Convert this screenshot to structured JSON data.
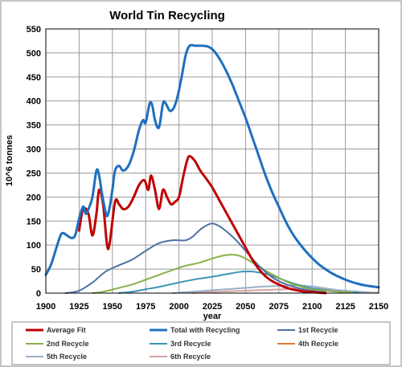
{
  "chart_data": {
    "type": "line",
    "title": "World Tin Recycling",
    "xlabel": "year",
    "ylabel": "10^6 tonnes",
    "xlim": [
      1900,
      2150
    ],
    "ylim": [
      0,
      550
    ],
    "xticks": [
      1900,
      1925,
      1950,
      1975,
      2000,
      2025,
      2050,
      2075,
      2100,
      2125,
      2150
    ],
    "yticks": [
      0,
      50,
      100,
      150,
      200,
      250,
      300,
      350,
      400,
      450,
      500,
      550
    ],
    "grid": true,
    "legend_position": "bottom",
    "series": [
      {
        "name": "Average Fit",
        "color": "#c00000",
        "x": [
          1925,
          1928,
          1932,
          1935,
          1938,
          1940,
          1943,
          1946,
          1948,
          1952,
          1955,
          1958,
          1962,
          1966,
          1970,
          1974,
          1977,
          1979,
          1982,
          1985,
          1988,
          1991,
          1994,
          1997,
          2000,
          2003,
          2006,
          2008,
          2012,
          2016,
          2020,
          2025,
          2030,
          2035,
          2040,
          2045,
          2050,
          2055,
          2060,
          2065,
          2070,
          2075,
          2080,
          2085,
          2090,
          2095,
          2100,
          2105,
          2110
        ],
        "y": [
          130,
          175,
          165,
          120,
          165,
          215,
          185,
          100,
          105,
          190,
          185,
          175,
          180,
          200,
          225,
          235,
          215,
          245,
          215,
          175,
          215,
          200,
          185,
          190,
          200,
          240,
          275,
          285,
          275,
          255,
          240,
          220,
          195,
          170,
          145,
          120,
          95,
          70,
          50,
          35,
          25,
          18,
          12,
          8,
          5,
          3,
          2,
          1,
          0
        ]
      },
      {
        "name": "Total with Recycling",
        "color": "#1f6fbf",
        "x": [
          1900,
          1904,
          1908,
          1911,
          1913,
          1916,
          1919,
          1922,
          1925,
          1928,
          1930,
          1932,
          1935,
          1938,
          1940,
          1942,
          1944,
          1946,
          1948,
          1950,
          1952,
          1955,
          1958,
          1962,
          1966,
          1970,
          1973,
          1975,
          1978,
          1980,
          1982,
          1985,
          1988,
          1990,
          1993,
          1996,
          1999,
          2002,
          2005,
          2008,
          2012,
          2017,
          2022,
          2026,
          2030,
          2035,
          2040,
          2045,
          2050,
          2055,
          2060,
          2065,
          2070,
          2075,
          2080,
          2085,
          2090,
          2095,
          2100,
          2105,
          2110,
          2115,
          2120,
          2125,
          2130,
          2135,
          2140,
          2145,
          2150
        ],
        "y": [
          38,
          60,
          95,
          120,
          125,
          120,
          115,
          120,
          155,
          180,
          165,
          175,
          200,
          255,
          245,
          210,
          180,
          160,
          180,
          215,
          255,
          265,
          255,
          265,
          295,
          340,
          360,
          355,
          395,
          390,
          360,
          345,
          395,
          395,
          380,
          385,
          410,
          450,
          495,
          515,
          515,
          515,
          513,
          505,
          490,
          465,
          435,
          400,
          365,
          325,
          285,
          245,
          210,
          180,
          150,
          125,
          105,
          88,
          73,
          60,
          50,
          41,
          34,
          28,
          23,
          19,
          16,
          14,
          12
        ]
      },
      {
        "name": "1st Recycle",
        "color": "#4f6fa6",
        "x": [
          1915,
          1925,
          1935,
          1945,
          1955,
          1965,
          1975,
          1985,
          1995,
          2000,
          2005,
          2010,
          2015,
          2020,
          2025,
          2030,
          2035,
          2040,
          2045,
          2050,
          2055,
          2060,
          2065,
          2070,
          2075,
          2080,
          2085,
          2090,
          2095,
          2100,
          2105,
          2110
        ],
        "y": [
          0,
          5,
          22,
          45,
          58,
          70,
          88,
          104,
          110,
          110,
          110,
          117,
          130,
          140,
          145,
          140,
          130,
          118,
          104,
          88,
          72,
          57,
          44,
          33,
          25,
          19,
          14,
          10,
          7,
          5,
          3,
          2
        ]
      },
      {
        "name": "2nd Recycle",
        "color": "#8ab04a",
        "x": [
          1935,
          1945,
          1955,
          1965,
          1975,
          1985,
          1995,
          2005,
          2015,
          2025,
          2030,
          2035,
          2040,
          2045,
          2050,
          2055,
          2060,
          2065,
          2070,
          2075,
          2080,
          2085,
          2090,
          2095,
          2100,
          2105,
          2110,
          2115,
          2120,
          2125,
          2130
        ],
        "y": [
          0,
          4,
          11,
          18,
          28,
          38,
          48,
          57,
          63,
          72,
          76,
          79,
          80,
          78,
          72,
          64,
          56,
          47,
          39,
          32,
          25,
          19,
          15,
          11,
          8,
          6,
          5,
          4,
          3,
          2,
          1
        ]
      },
      {
        "name": "3rd Recycle",
        "color": "#3a95b5",
        "x": [
          1955,
          1965,
          1975,
          1985,
          1995,
          2005,
          2015,
          2025,
          2035,
          2045,
          2050,
          2055,
          2060,
          2065,
          2070,
          2075,
          2080,
          2085,
          2090,
          2095,
          2100,
          2105,
          2110,
          2115,
          2120,
          2125,
          2130,
          2135
        ],
        "y": [
          0,
          3,
          8,
          13,
          19,
          25,
          30,
          34,
          39,
          44,
          45,
          45,
          43,
          40,
          36,
          31,
          26,
          21,
          17,
          13,
          10,
          8,
          6,
          4,
          3,
          2,
          1,
          1
        ]
      },
      {
        "name": "4th Recycle",
        "color": "#e07b39",
        "x": [
          1975,
          1985,
          1995,
          2005,
          2015,
          2025,
          2035,
          2045,
          2055,
          2065,
          2070,
          2075,
          2080,
          2085,
          2090,
          2095,
          2100,
          2105,
          2110,
          2115,
          2120,
          2125,
          2130,
          2135,
          2140
        ],
        "y": [
          0,
          2,
          5,
          9,
          13,
          17,
          20,
          23,
          25,
          26,
          26,
          25,
          23,
          21,
          18,
          15,
          12,
          10,
          8,
          6,
          4,
          3,
          2,
          1,
          1
        ]
      },
      {
        "name": "5th Recycle",
        "color": "#9aafc8",
        "x": [
          1995,
          2005,
          2015,
          2025,
          2035,
          2045,
          2055,
          2065,
          2075,
          2085,
          2090,
          2095,
          2100,
          2105,
          2110,
          2115,
          2120,
          2125,
          2130,
          2135,
          2140,
          2145
        ],
        "y": [
          0,
          2,
          4,
          6,
          8,
          10,
          12,
          14,
          15,
          16,
          16,
          15,
          14,
          12,
          10,
          8,
          6,
          5,
          4,
          3,
          2,
          1
        ]
      },
      {
        "name": "6th Recycle",
        "color": "#d9a0a0",
        "x": [
          2010,
          2020,
          2030,
          2040,
          2050,
          2060,
          2070,
          2080,
          2090,
          2095,
          2100,
          2105,
          2110,
          2115,
          2120,
          2125,
          2130,
          2135,
          2140,
          2145,
          2150
        ],
        "y": [
          0,
          2,
          3,
          4,
          5,
          6,
          7,
          8,
          9,
          9,
          9,
          9,
          8,
          7,
          6,
          5,
          4,
          3,
          2,
          1,
          1
        ]
      }
    ]
  }
}
